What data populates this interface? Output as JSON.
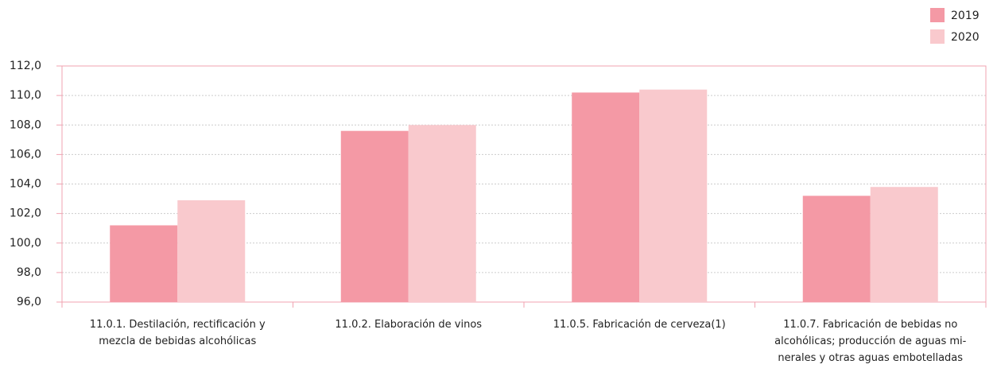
{
  "chart_data": {
    "type": "bar",
    "categories": [
      "11.0.1. Destilación, rectificación y\nmezcla de bebidas alcohólicas",
      "11.0.2. Elaboración de vinos",
      "11.0.5. Fabricación de cerveza(1)",
      "11.0.7. Fabricación de bebidas no\nalcohólicas; producción de aguas mi-\nnerales y otras aguas embotelladas"
    ],
    "series": [
      {
        "name": "2019",
        "color": "#f499a5",
        "values": [
          101.2,
          107.6,
          110.2,
          103.2
        ]
      },
      {
        "name": "2020",
        "color": "#f9c9cd",
        "values": [
          102.9,
          108.0,
          110.4,
          103.8
        ]
      }
    ],
    "ylim": [
      96,
      112
    ],
    "yticks": [
      {
        "value": 96,
        "label": "96,0"
      },
      {
        "value": 98,
        "label": "98,0"
      },
      {
        "value": 100,
        "label": "100,0"
      },
      {
        "value": 102,
        "label": "102,0"
      },
      {
        "value": 104,
        "label": "104,0"
      },
      {
        "value": 106,
        "label": "106,0"
      },
      {
        "value": 108,
        "label": "108,0"
      },
      {
        "value": 110,
        "label": "110,0"
      },
      {
        "value": 112,
        "label": "112,0"
      }
    ],
    "grid": true,
    "legend": "top-right"
  }
}
